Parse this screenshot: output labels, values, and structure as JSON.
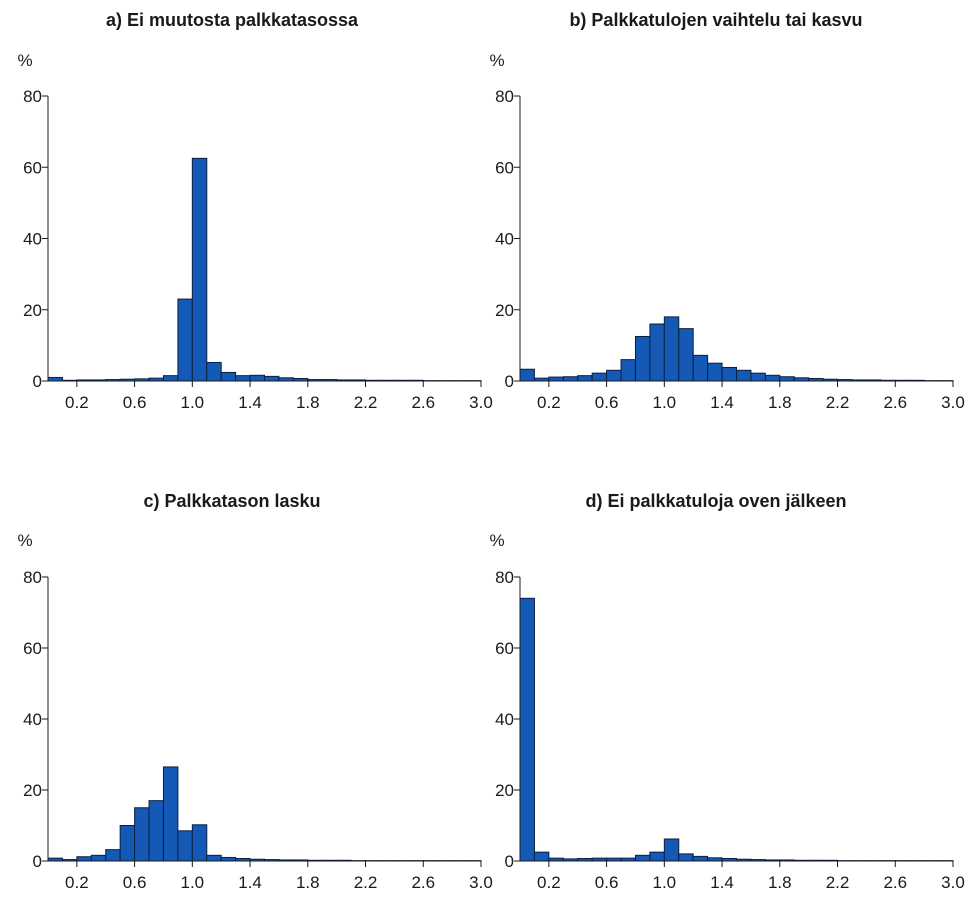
{
  "colors": {
    "bar_fill": "#1559b7",
    "bar_stroke": "#0c1f3f",
    "axis": "#1a1a1a"
  },
  "chart_data": [
    {
      "type": "bar",
      "title": "a) Ei muutosta palkkatasossa",
      "ylabel": "%",
      "ylim": [
        0,
        80
      ],
      "yticks": [
        "0",
        "20",
        "40",
        "60",
        "80"
      ],
      "xlim": [
        0,
        3.0
      ],
      "xticks": [
        "0.2",
        "0.6",
        "1.0",
        "1.4",
        "1.8",
        "2.2",
        "2.6",
        "3.0"
      ],
      "bin_width": 0.1,
      "values": [
        1.0,
        0.2,
        0.3,
        0.3,
        0.4,
        0.5,
        0.6,
        0.8,
        1.5,
        23,
        62.5,
        5.2,
        2.4,
        1.5,
        1.6,
        1.3,
        0.9,
        0.7,
        0.4,
        0.4,
        0.3,
        0.3,
        0.2,
        0.2,
        0.2,
        0.2,
        0.1,
        0.1,
        0.1,
        0.1
      ]
    },
    {
      "type": "bar",
      "title": "b) Palkkatulojen vaihtelu tai kasvu",
      "ylabel": "%",
      "ylim": [
        0,
        80
      ],
      "yticks": [
        "0",
        "20",
        "40",
        "60",
        "80"
      ],
      "xlim": [
        0,
        3.0
      ],
      "xticks": [
        "0.2",
        "0.6",
        "1.0",
        "1.4",
        "1.8",
        "2.2",
        "2.6",
        "3.0"
      ],
      "bin_width": 0.1,
      "values": [
        3.3,
        0.8,
        1.1,
        1.2,
        1.5,
        2.2,
        3.0,
        6.0,
        12.5,
        16.0,
        18.0,
        14.7,
        7.2,
        5.0,
        3.8,
        3.0,
        2.2,
        1.6,
        1.2,
        0.9,
        0.7,
        0.5,
        0.4,
        0.3,
        0.3,
        0.2,
        0.2,
        0.2,
        0.1,
        0.1
      ]
    },
    {
      "type": "bar",
      "title": "c) Palkkatason lasku",
      "ylabel": "%",
      "ylim": [
        0,
        80
      ],
      "yticks": [
        "0",
        "20",
        "40",
        "60",
        "80"
      ],
      "xlim": [
        0,
        3.0
      ],
      "xticks": [
        "0.2",
        "0.6",
        "1.0",
        "1.4",
        "1.8",
        "2.2",
        "2.6",
        "3.0"
      ],
      "bin_width": 0.1,
      "values": [
        0.8,
        0.4,
        1.2,
        1.6,
        3.2,
        10.0,
        15.0,
        17.0,
        26.5,
        8.5,
        10.2,
        1.6,
        1.0,
        0.7,
        0.5,
        0.4,
        0.3,
        0.3,
        0.2,
        0.2,
        0.2,
        0.1,
        0.1,
        0.1,
        0.1,
        0.1,
        0.1,
        0.1,
        0.1,
        0.1
      ]
    },
    {
      "type": "bar",
      "title": "d) Ei palkkatuloja oven jälkeen",
      "ylabel": "%",
      "ylim": [
        0,
        80
      ],
      "yticks": [
        "0",
        "20",
        "40",
        "60",
        "80"
      ],
      "xlim": [
        0,
        3.0
      ],
      "xticks": [
        "0.2",
        "0.6",
        "1.0",
        "1.4",
        "1.8",
        "2.2",
        "2.6",
        "3.0"
      ],
      "bin_width": 0.1,
      "values": [
        74.0,
        2.5,
        0.8,
        0.6,
        0.7,
        0.8,
        0.8,
        0.8,
        1.6,
        2.5,
        6.2,
        2.0,
        1.3,
        0.9,
        0.7,
        0.5,
        0.4,
        0.3,
        0.3,
        0.2,
        0.2,
        0.2,
        0.1,
        0.1,
        0.1,
        0.1,
        0.1,
        0.1,
        0.1,
        0.1
      ]
    }
  ]
}
